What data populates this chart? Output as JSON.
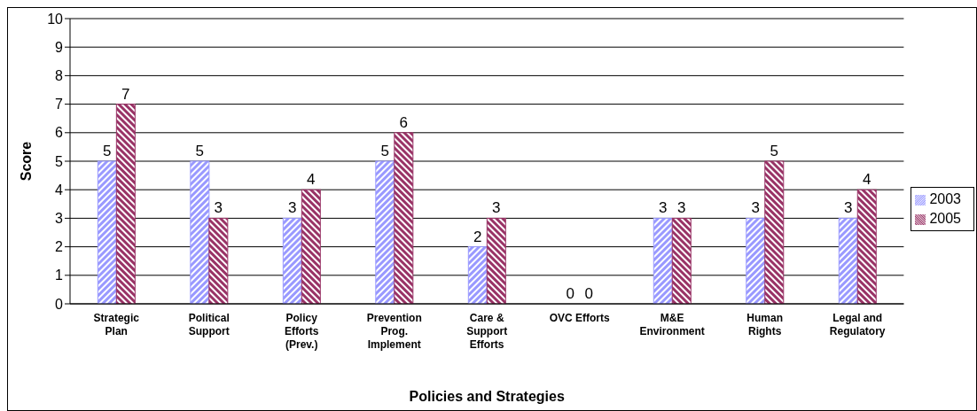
{
  "chart_data": {
    "type": "bar",
    "xlabel": "Policies and Strategies",
    "ylabel": "Score",
    "categories": [
      "Strategic Plan",
      "Political Support",
      "Policy Efforts (Prev.)",
      "Prevention Prog. Implement",
      "Care & Support Efforts",
      "OVC Efforts",
      "M&E Environment",
      "Human Rights",
      "Legal and Regulatory"
    ],
    "series": [
      {
        "name": "2003",
        "color": "#9999ff",
        "values": [
          5,
          5,
          3,
          5,
          2,
          0,
          3,
          3,
          3
        ]
      },
      {
        "name": "2005",
        "color": "#993366",
        "values": [
          7,
          3,
          4,
          6,
          3,
          0,
          3,
          5,
          4
        ]
      }
    ],
    "ylim": [
      0,
      10
    ],
    "yticks": [
      0,
      1,
      2,
      3,
      4,
      5,
      6,
      7,
      8,
      9,
      10
    ],
    "grid": "y",
    "legend": "right",
    "data_labels": true
  }
}
